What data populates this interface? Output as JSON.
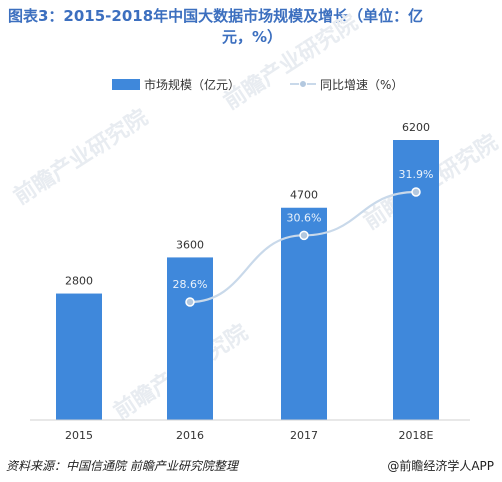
{
  "title_line1": "图表3：2015-2018年中国大数据市场规模及增长（单位：亿",
  "title_line2": "元，%）",
  "source": "资料来源：中国信通院 前瞻产业研究院整理",
  "brand": "@前瞻经济学人APP",
  "watermark": "前瞻产业研究院",
  "colors": {
    "bar": "#3f88db",
    "line": "#c9d9ea",
    "marker": "#b3c8df",
    "title": "#3c6fbf"
  },
  "chart_data": {
    "type": "bar+line",
    "categories": [
      "2015",
      "2016",
      "2017",
      "2018E"
    ],
    "series": [
      {
        "name": "市场规模（亿元）",
        "type": "bar",
        "values": [
          2800,
          3600,
          4700,
          6200
        ],
        "labels": [
          "2800",
          "3600",
          "4700",
          "6200"
        ]
      },
      {
        "name": "同比增速（%）",
        "type": "line",
        "x": [
          "2016",
          "2017",
          "2018E"
        ],
        "values": [
          28.6,
          30.6,
          31.9
        ],
        "labels": [
          "28.6%",
          "30.6%",
          "31.9%"
        ]
      }
    ],
    "ylim_bar": [
      0,
      6200
    ],
    "legend": "top",
    "grid": false
  }
}
